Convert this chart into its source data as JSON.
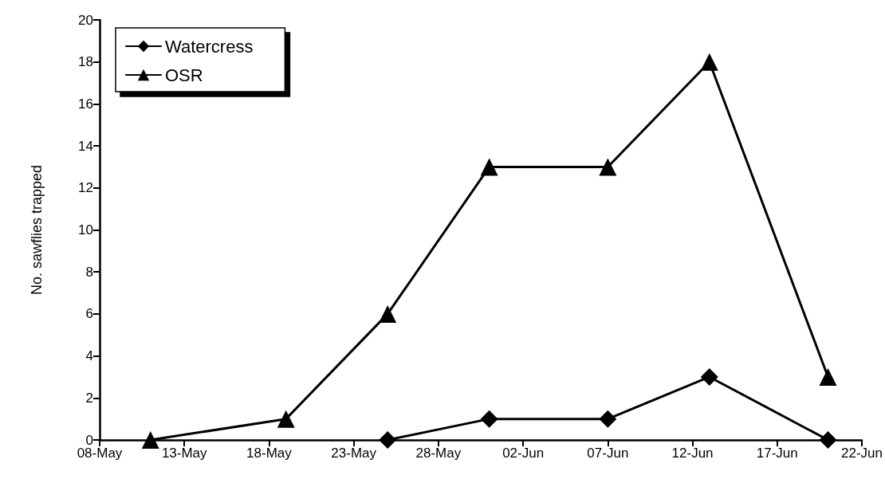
{
  "chart_data": {
    "type": "line",
    "ylabel": "No. sawflies trapped",
    "series": [
      {
        "name": "Watercress",
        "color": "#000000",
        "marker": "diamond",
        "x": [
          "--05-25",
          "--05-31",
          "--06-07",
          "--06-13",
          "--06-20"
        ],
        "values": [
          0,
          1,
          1,
          3,
          0
        ]
      },
      {
        "name": "OSR",
        "color": "#000000",
        "marker": "triangle",
        "x": [
          "--05-11",
          "--05-19",
          "--05-25",
          "--05-31",
          "--06-07",
          "--06-13",
          "--06-20"
        ],
        "values": [
          0,
          1,
          6,
          13,
          13,
          18,
          3
        ]
      }
    ],
    "xlim": [
      "--05-08",
      "--06-22"
    ],
    "xticks": [
      {
        "value": "--05-08",
        "label": "08-May"
      },
      {
        "value": "--05-13",
        "label": "13-May"
      },
      {
        "value": "--05-18",
        "label": "18-May"
      },
      {
        "value": "--05-23",
        "label": "23-May"
      },
      {
        "value": "--05-28",
        "label": "28-May"
      },
      {
        "value": "--06-02",
        "label": "02-Jun"
      },
      {
        "value": "--06-07",
        "label": "07-Jun"
      },
      {
        "value": "--06-12",
        "label": "12-Jun"
      },
      {
        "value": "--06-17",
        "label": "17-Jun"
      },
      {
        "value": "--06-22",
        "label": "22-Jun"
      }
    ],
    "ylim": [
      0,
      20
    ],
    "yticks": [
      0,
      2,
      4,
      6,
      8,
      10,
      12,
      14,
      16,
      18,
      20
    ],
    "grid": false,
    "legend": "top left",
    "line_style": "solid"
  }
}
